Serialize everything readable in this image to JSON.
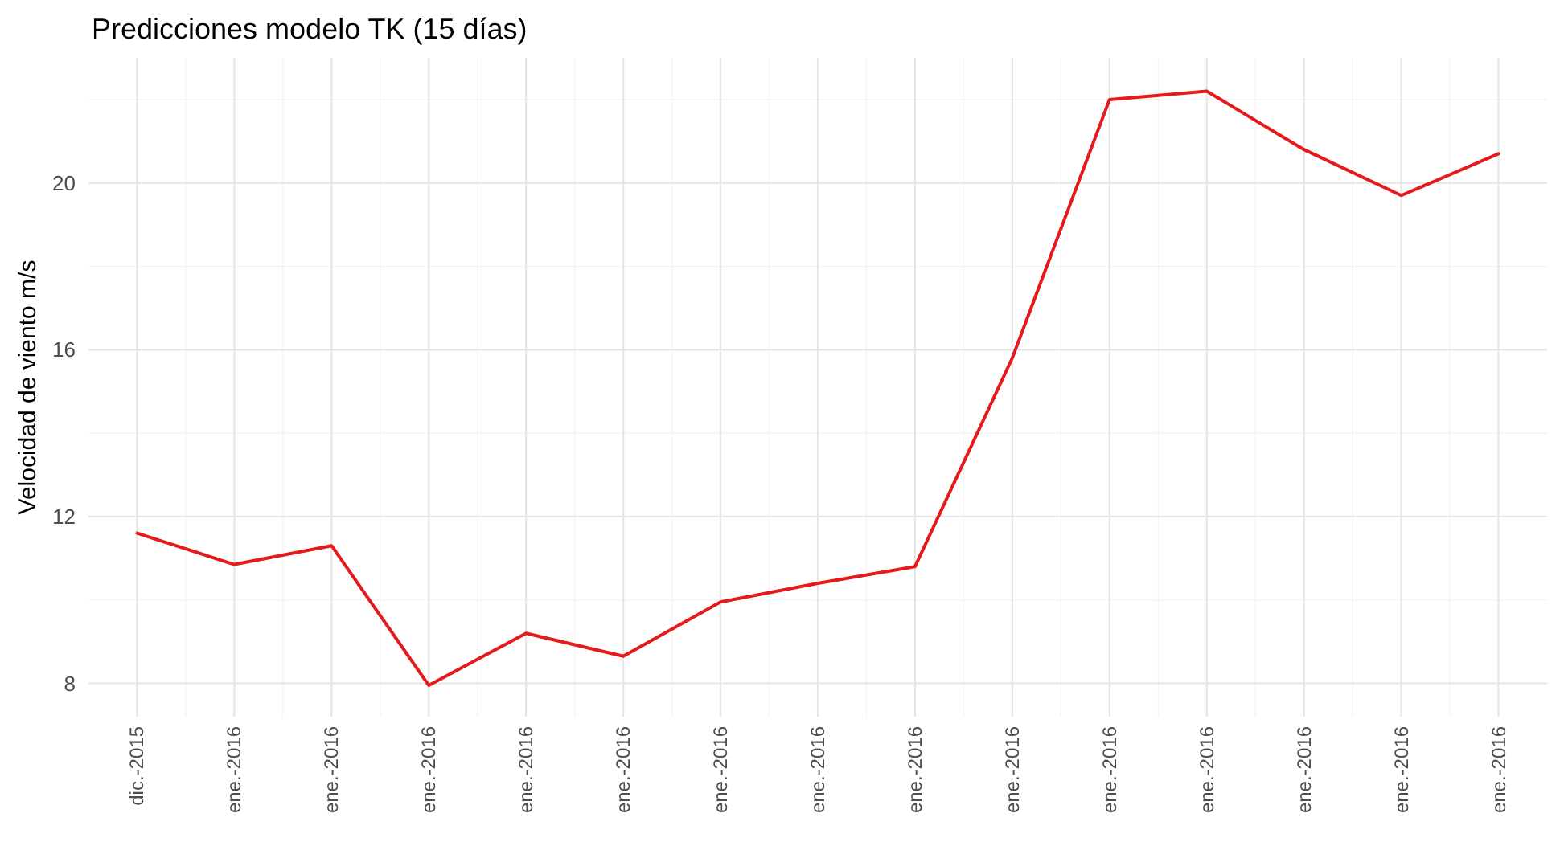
{
  "chart_data": {
    "type": "line",
    "title": "Predicciones modelo TK (15 días)",
    "ylabel": "Velocidad de viento m/s",
    "categories": [
      "dic.-2015",
      "ene.-2016",
      "ene.-2016",
      "ene.-2016",
      "ene.-2016",
      "ene.-2016",
      "ene.-2016",
      "ene.-2016",
      "ene.-2016",
      "ene.-2016",
      "ene.-2016",
      "ene.-2016",
      "ene.-2016",
      "ene.-2016",
      "ene.-2016"
    ],
    "series": [
      {
        "color": "#e41a1c",
        "values": [
          11.6,
          10.85,
          11.3,
          7.95,
          9.2,
          8.65,
          9.95,
          10.4,
          10.8,
          15.8,
          22.0,
          22.2,
          20.8,
          19.7,
          20.7
        ]
      }
    ],
    "ylim": [
      7.2,
      23
    ],
    "yticks": [
      8,
      12,
      16,
      20
    ],
    "grid": true,
    "marker": "none",
    "line_style": "solid"
  }
}
